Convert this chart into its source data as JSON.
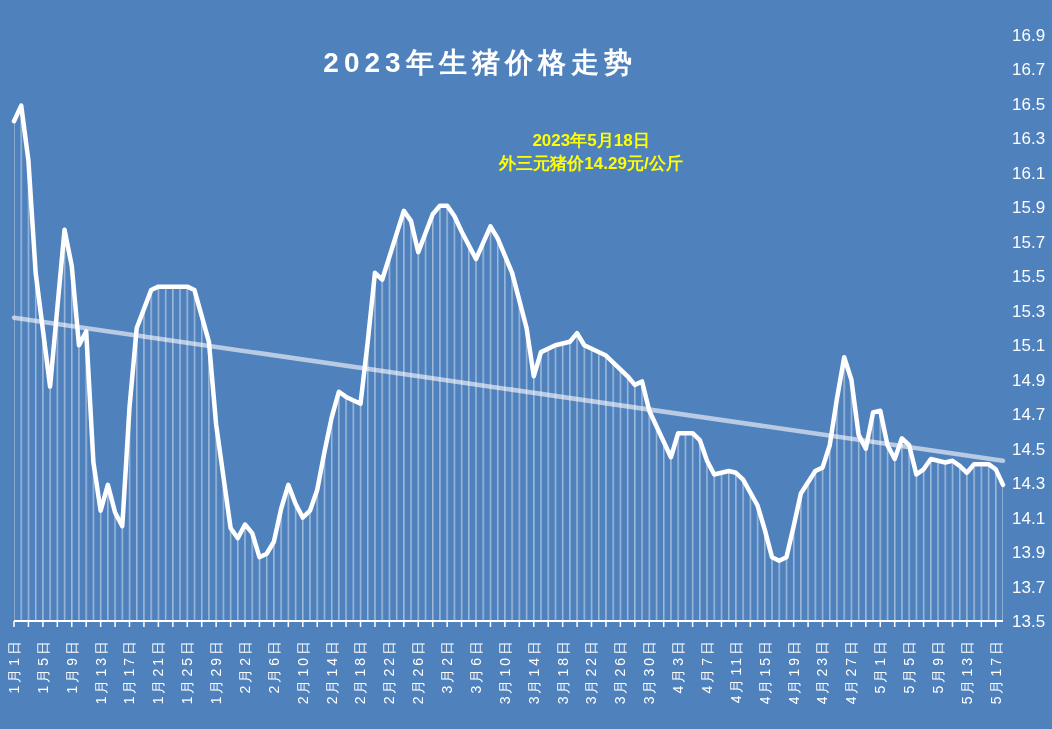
{
  "chart_data": {
    "type": "area",
    "title": "2023年生猪价格走势",
    "annotations": [
      "2023年5月18日",
      "外三元猪价14.29元/公斤"
    ],
    "series": [
      {
        "type": "line",
        "color": "#b9cbe4",
        "x": [
          "--01-01",
          "--05-18"
        ],
        "values": [
          15.26,
          14.43
        ]
      },
      {
        "color": "#ffffff",
        "x": [
          "--01-01",
          "--01-02",
          "--01-03",
          "--01-04",
          "--01-06",
          "--01-08",
          "--01-09",
          "--01-10",
          "--01-11",
          "--01-12",
          "--01-13",
          "--01-14",
          "--01-15",
          "--01-16",
          "--01-17",
          "--01-18",
          "--01-20",
          "--01-21",
          "--01-25",
          "--01-26",
          "--01-28",
          "--01-29",
          "--01-31",
          "--02-01",
          "--02-02",
          "--02-03",
          "--02-04",
          "--02-05",
          "--02-06",
          "--02-07",
          "--02-08",
          "--02-09",
          "--02-10",
          "--02-11",
          "--02-12",
          "--02-13",
          "--02-14",
          "--02-15",
          "--02-16",
          "--02-18",
          "--02-19",
          "--02-20",
          "--02-21",
          "--02-24",
          "--02-25",
          "--02-26",
          "--02-27",
          "--02-28",
          "--03-01",
          "--03-02",
          "--03-03",
          "--03-04",
          "--03-06",
          "--03-08",
          "--03-09",
          "--03-11",
          "--03-12",
          "--03-13",
          "--03-14",
          "--03-15",
          "--03-17",
          "--03-19",
          "--03-20",
          "--03-21",
          "--03-24",
          "--03-27",
          "--03-28",
          "--03-29",
          "--03-30",
          "--04-01",
          "--04-02",
          "--04-03",
          "--04-05",
          "--04-06",
          "--04-07",
          "--04-08",
          "--04-10",
          "--04-11",
          "--04-12",
          "--04-14",
          "--04-15",
          "--04-16",
          "--04-17",
          "--04-18",
          "--04-19",
          "--04-20",
          "--04-22",
          "--04-23",
          "--04-24",
          "--04-25",
          "--04-26",
          "--04-27",
          "--04-28",
          "--04-29",
          "--04-30",
          "--05-01",
          "--05-02",
          "--05-03",
          "--05-04",
          "--05-05",
          "--05-06",
          "--05-07",
          "--05-08",
          "--05-10",
          "--05-11",
          "--05-12",
          "--05-13",
          "--05-14",
          "--05-16",
          "--05-17",
          "--05-18"
        ],
        "values": [
          16.4,
          16.49,
          16.17,
          15.52,
          14.86,
          15.77,
          15.56,
          15.1,
          15.18,
          14.42,
          14.14,
          14.29,
          14.13,
          14.05,
          14.74,
          15.2,
          15.42,
          15.44,
          15.44,
          15.42,
          15.12,
          14.64,
          14.04,
          13.98,
          14.06,
          14.01,
          13.87,
          13.89,
          13.96,
          14.15,
          14.29,
          14.18,
          14.1,
          14.14,
          14.26,
          14.48,
          14.68,
          14.83,
          14.8,
          14.76,
          15.12,
          15.52,
          15.48,
          15.88,
          15.82,
          15.64,
          15.75,
          15.86,
          15.91,
          15.91,
          15.85,
          15.76,
          15.6,
          15.79,
          15.72,
          15.52,
          15.36,
          15.2,
          14.92,
          15.06,
          15.1,
          15.12,
          15.17,
          15.1,
          15.04,
          14.92,
          14.87,
          14.89,
          14.72,
          14.54,
          14.45,
          14.59,
          14.59,
          14.55,
          14.43,
          14.35,
          14.37,
          14.36,
          14.32,
          14.17,
          14.03,
          13.87,
          13.85,
          13.87,
          14.05,
          14.24,
          14.37,
          14.39,
          14.52,
          14.79,
          15.03,
          14.9,
          14.58,
          14.5,
          14.71,
          14.72,
          14.52,
          14.44,
          14.56,
          14.52,
          14.35,
          14.38,
          14.44,
          14.42,
          14.43,
          14.4,
          14.36,
          14.41,
          14.41,
          14.38,
          14.29
        ]
      }
    ],
    "xlim": [
      "--01-01",
      "--05-18"
    ],
    "xticks": [
      {
        "value": "--01-01",
        "label": "1月1日"
      },
      {
        "value": "--01-03",
        "label": null
      },
      {
        "value": "--01-05",
        "label": "1月5日"
      },
      {
        "value": "--01-07",
        "label": null
      },
      {
        "value": "--01-09",
        "label": "1月9日"
      },
      {
        "value": "--01-11",
        "label": null
      },
      {
        "value": "--01-13",
        "label": "1月13日"
      },
      {
        "value": "--01-15",
        "label": null
      },
      {
        "value": "--01-17",
        "label": "1月17日"
      },
      {
        "value": "--01-19",
        "label": null
      },
      {
        "value": "--01-21",
        "label": "1月21日"
      },
      {
        "value": "--01-23",
        "label": null
      },
      {
        "value": "--01-25",
        "label": "1月25日"
      },
      {
        "value": "--01-27",
        "label": null
      },
      {
        "value": "--01-29",
        "label": "1月29日"
      },
      {
        "value": "--01-31",
        "label": null
      },
      {
        "value": "--02-02",
        "label": "2月2日"
      },
      {
        "value": "--02-04",
        "label": null
      },
      {
        "value": "--02-06",
        "label": "2月6日"
      },
      {
        "value": "--02-08",
        "label": null
      },
      {
        "value": "--02-10",
        "label": "2月10日"
      },
      {
        "value": "--02-12",
        "label": null
      },
      {
        "value": "--02-14",
        "label": "2月14日"
      },
      {
        "value": "--02-16",
        "label": null
      },
      {
        "value": "--02-18",
        "label": "2月18日"
      },
      {
        "value": "--02-20",
        "label": null
      },
      {
        "value": "--02-22",
        "label": "2月22日"
      },
      {
        "value": "--02-24",
        "label": null
      },
      {
        "value": "--02-26",
        "label": "2月26日"
      },
      {
        "value": "--02-28",
        "label": null
      },
      {
        "value": "--03-02",
        "label": "3月2日"
      },
      {
        "value": "--03-04",
        "label": null
      },
      {
        "value": "--03-06",
        "label": "3月6日"
      },
      {
        "value": "--03-08",
        "label": null
      },
      {
        "value": "--03-10",
        "label": "3月10日"
      },
      {
        "value": "--03-12",
        "label": null
      },
      {
        "value": "--03-14",
        "label": "3月14日"
      },
      {
        "value": "--03-16",
        "label": null
      },
      {
        "value": "--03-18",
        "label": "3月18日"
      },
      {
        "value": "--03-20",
        "label": null
      },
      {
        "value": "--03-22",
        "label": "3月22日"
      },
      {
        "value": "--03-24",
        "label": null
      },
      {
        "value": "--03-26",
        "label": "3月26日"
      },
      {
        "value": "--03-28",
        "label": null
      },
      {
        "value": "--03-30",
        "label": "3月30日"
      },
      {
        "value": "--04-01",
        "label": null
      },
      {
        "value": "--04-03",
        "label": "4月3日"
      },
      {
        "value": "--04-05",
        "label": null
      },
      {
        "value": "--04-07",
        "label": "4月7日"
      },
      {
        "value": "--04-09",
        "label": null
      },
      {
        "value": "--04-11",
        "label": "4月11日"
      },
      {
        "value": "--04-13",
        "label": null
      },
      {
        "value": "--04-15",
        "label": "4月15日"
      },
      {
        "value": "--04-17",
        "label": null
      },
      {
        "value": "--04-19",
        "label": "4月19日"
      },
      {
        "value": "--04-21",
        "label": null
      },
      {
        "value": "--04-23",
        "label": "4月23日"
      },
      {
        "value": "--04-25",
        "label": null
      },
      {
        "value": "--04-27",
        "label": "4月27日"
      },
      {
        "value": "--04-29",
        "label": null
      },
      {
        "value": "--05-01",
        "label": "5月1日"
      },
      {
        "value": "--05-03",
        "label": null
      },
      {
        "value": "--05-05",
        "label": "5月5日"
      },
      {
        "value": "--05-07",
        "label": null
      },
      {
        "value": "--05-09",
        "label": "5月9日"
      },
      {
        "value": "--05-11",
        "label": null
      },
      {
        "value": "--05-13",
        "label": "5月13日"
      },
      {
        "value": "--05-15",
        "label": null
      },
      {
        "value": "--05-17",
        "label": "5月17日"
      }
    ],
    "ylim": [
      13.5,
      16.9
    ],
    "yticks": [
      13.5,
      13.7,
      13.9,
      14.1,
      14.3,
      14.5,
      14.7,
      14.9,
      15.1,
      15.3,
      15.5,
      15.7,
      15.9,
      16.1,
      16.3,
      16.5,
      16.7,
      16.9
    ]
  }
}
